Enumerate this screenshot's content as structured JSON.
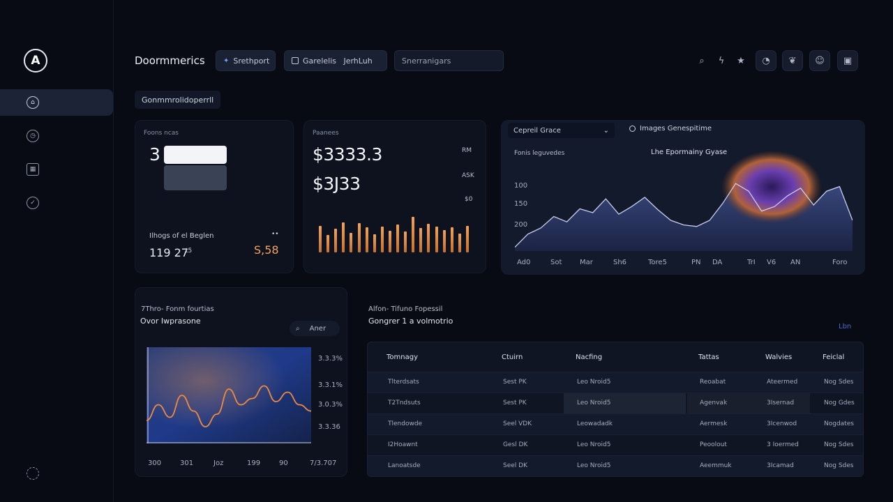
{
  "sidebar": {
    "logo": "A",
    "items": [
      {
        "icon": "home-icon",
        "glyph": "⌂",
        "active": true
      },
      {
        "icon": "clock-icon",
        "glyph": "◷",
        "active": false
      },
      {
        "icon": "calendar-icon",
        "glyph": "▦",
        "active": false
      },
      {
        "icon": "check-icon",
        "glyph": "✓",
        "active": false
      }
    ],
    "footer_icon": "settings-icon"
  },
  "header": {
    "title": "Doormmerics",
    "tabs": [
      "Srethport",
      "Garelelis   JerhLuh",
      "Snerranigars"
    ],
    "tools": [
      "search-icon",
      "bolt-icon",
      "star-icon",
      "clock-icon",
      "gift-icon",
      "emoji-icon",
      "grid-icon"
    ]
  },
  "section_label": "Gonmmrolidoperrll",
  "stats": {
    "card1": {
      "label": "Foons ncas",
      "value": "3",
      "sub_label": "Ilhogs of el Beglen",
      "sub_mark": "••",
      "sub_value": "119 27",
      "sub_unit": "t5",
      "accent_value": "S,58",
      "accent_color": "#f2a25c"
    },
    "card2": {
      "label": "Paanees",
      "value1": "$3333.3",
      "value2": "$3J33",
      "right_labels": [
        "RM",
        "ASK",
        "$0"
      ],
      "bars": [
        0.62,
        0.4,
        0.55,
        0.7,
        0.45,
        0.68,
        0.58,
        0.42,
        0.6,
        0.5,
        0.64,
        0.48,
        0.82,
        0.56,
        0.66,
        0.6,
        0.52,
        0.58,
        0.44,
        0.62
      ]
    }
  },
  "area_chart": {
    "dropdown": "Cepreil Grace",
    "dropdown_arrow": "⌄",
    "tab": "Images Genespitime",
    "subtitle": "Fonis leguvedes",
    "title": "Lhe Epormainy Gyase",
    "yticks": [
      "100",
      "150",
      "200"
    ],
    "xticks": [
      "Ad0",
      "Sot",
      "Mar",
      "Sh6",
      "Tore5",
      "PN",
      "DA",
      "TrI",
      "V6",
      "AN",
      "Foro"
    ],
    "values": [
      5,
      22,
      30,
      45,
      38,
      55,
      50,
      68,
      48,
      58,
      70,
      54,
      40,
      34,
      32,
      40,
      62,
      88,
      78,
      52,
      58,
      72,
      82,
      60,
      78,
      84,
      40
    ]
  },
  "line_chart": {
    "header": "7Thro- Fonm fourtias",
    "title": "Ovor Iwprasone",
    "search_label": "Aner",
    "yticks": [
      "3.3.3%",
      "3.3.1%",
      "3.0.3%",
      "3.3.36"
    ],
    "xticks": [
      "300",
      "301",
      "Joz",
      "199",
      "90",
      "7/3.707"
    ],
    "values": [
      30,
      55,
      35,
      70,
      45,
      20,
      40,
      80,
      55,
      65,
      85,
      60,
      75,
      55,
      45
    ]
  },
  "table": {
    "header": "Alfon- Tifuno Fopessil",
    "title": "Gongrer 1 a volmotrio",
    "link": "Lbn",
    "columns": [
      "Tomnagy",
      "Ctuirn",
      "Nacfing",
      "Tattas",
      "Walvies",
      "Feiclal"
    ],
    "rows": [
      [
        "Tlterdsats",
        "Sest PK",
        "Leo Nroid5",
        "Reoabat",
        "Ateermed",
        "Nog Sdes"
      ],
      [
        "T2Tndsuts",
        "Sest PK",
        "Leo Nroid5",
        "Agenvak",
        "3Isernad",
        "Nog Gdes"
      ],
      [
        "Tlendowde",
        "Seel VDK",
        "Leowadadk",
        "Aermesk",
        "3Icenwod",
        "Nogdates"
      ],
      [
        "I2Hoawnt",
        "Gesl DK",
        "Leo Nroid5",
        "Peoolout",
        "3 Ioermed",
        "Nog Sdes"
      ],
      [
        "Lanoatsde",
        "Seel DK",
        "Leo Nroid5",
        "Aeemmuk",
        "3Icamad",
        "Nog Sdes"
      ]
    ]
  }
}
